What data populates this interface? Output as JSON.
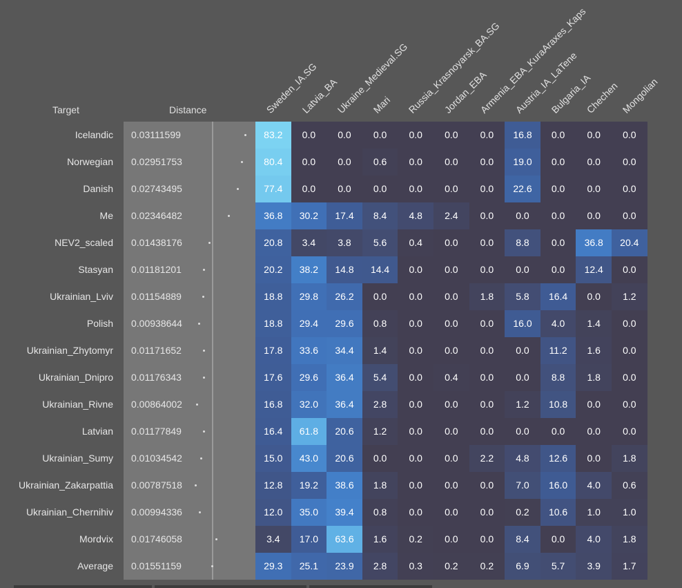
{
  "chart_data": {
    "type": "heatmap",
    "headers": {
      "target": "Target",
      "distance": "Distance"
    },
    "columns": [
      "Sweden_IA.SG",
      "Latvia_BA",
      "Ukraine_Medieval.SG",
      "Mari",
      "Russia_Krasnoyarsk_BA.SG",
      "Jordan_EBA",
      "Armenia_EBA_KuraAraxes_Kaps",
      "Austria_IA_LaTene",
      "Bulgaria_IA",
      "Chechen",
      "Mongolian"
    ],
    "rows": [
      {
        "target": "Icelandic",
        "distance": "0.03111599",
        "values": [
          "83.2",
          "0.0",
          "0.0",
          "0.0",
          "0.0",
          "0.0",
          "0.0",
          "16.8",
          "0.0",
          "0.0",
          "0.0"
        ]
      },
      {
        "target": "Norwegian",
        "distance": "0.02951753",
        "values": [
          "80.4",
          "0.0",
          "0.0",
          "0.6",
          "0.0",
          "0.0",
          "0.0",
          "19.0",
          "0.0",
          "0.0",
          "0.0"
        ]
      },
      {
        "target": "Danish",
        "distance": "0.02743495",
        "values": [
          "77.4",
          "0.0",
          "0.0",
          "0.0",
          "0.0",
          "0.0",
          "0.0",
          "22.6",
          "0.0",
          "0.0",
          "0.0"
        ]
      },
      {
        "target": "Me",
        "distance": "0.02346482",
        "values": [
          "36.8",
          "30.2",
          "17.4",
          "8.4",
          "4.8",
          "2.4",
          "0.0",
          "0.0",
          "0.0",
          "0.0",
          "0.0"
        ]
      },
      {
        "target": "NEV2_scaled",
        "distance": "0.01438176",
        "values": [
          "20.8",
          "3.4",
          "3.8",
          "5.6",
          "0.4",
          "0.0",
          "0.0",
          "8.8",
          "0.0",
          "36.8",
          "20.4"
        ]
      },
      {
        "target": "Stasyan",
        "distance": "0.01181201",
        "values": [
          "20.2",
          "38.2",
          "14.8",
          "14.4",
          "0.0",
          "0.0",
          "0.0",
          "0.0",
          "0.0",
          "12.4",
          "0.0"
        ]
      },
      {
        "target": "Ukrainian_Lviv",
        "distance": "0.01154889",
        "values": [
          "18.8",
          "29.8",
          "26.2",
          "0.0",
          "0.0",
          "0.0",
          "1.8",
          "5.8",
          "16.4",
          "0.0",
          "1.2"
        ]
      },
      {
        "target": "Polish",
        "distance": "0.00938644",
        "values": [
          "18.8",
          "29.4",
          "29.6",
          "0.8",
          "0.0",
          "0.0",
          "0.0",
          "16.0",
          "4.0",
          "1.4",
          "0.0"
        ]
      },
      {
        "target": "Ukrainian_Zhytomyr",
        "distance": "0.01171652",
        "values": [
          "17.8",
          "33.6",
          "34.4",
          "1.4",
          "0.0",
          "0.0",
          "0.0",
          "0.0",
          "11.2",
          "1.6",
          "0.0"
        ]
      },
      {
        "target": "Ukrainian_Dnipro",
        "distance": "0.01176343",
        "values": [
          "17.6",
          "29.6",
          "36.4",
          "5.4",
          "0.0",
          "0.4",
          "0.0",
          "0.0",
          "8.8",
          "1.8",
          "0.0"
        ]
      },
      {
        "target": "Ukrainian_Rivne",
        "distance": "0.00864002",
        "values": [
          "16.8",
          "32.0",
          "36.4",
          "2.8",
          "0.0",
          "0.0",
          "0.0",
          "1.2",
          "10.8",
          "0.0",
          "0.0"
        ]
      },
      {
        "target": "Latvian",
        "distance": "0.01177849",
        "values": [
          "16.4",
          "61.8",
          "20.6",
          "1.2",
          "0.0",
          "0.0",
          "0.0",
          "0.0",
          "0.0",
          "0.0",
          "0.0"
        ]
      },
      {
        "target": "Ukrainian_Sumy",
        "distance": "0.01034542",
        "values": [
          "15.0",
          "43.0",
          "20.6",
          "0.0",
          "0.0",
          "0.0",
          "2.2",
          "4.8",
          "12.6",
          "0.0",
          "1.8"
        ]
      },
      {
        "target": "Ukrainian_Zakarpattia",
        "distance": "0.00787518",
        "values": [
          "12.8",
          "19.2",
          "38.6",
          "1.8",
          "0.0",
          "0.0",
          "0.0",
          "7.0",
          "16.0",
          "4.0",
          "0.6"
        ]
      },
      {
        "target": "Ukrainian_Chernihiv",
        "distance": "0.00994336",
        "values": [
          "12.0",
          "35.0",
          "39.4",
          "0.8",
          "0.0",
          "0.0",
          "0.0",
          "0.2",
          "10.6",
          "1.0",
          "1.0"
        ]
      },
      {
        "target": "Mordvix",
        "distance": "0.01746058",
        "values": [
          "3.4",
          "17.0",
          "63.6",
          "1.6",
          "0.2",
          "0.0",
          "0.0",
          "8.4",
          "0.0",
          "4.0",
          "1.8"
        ]
      },
      {
        "target": "Average",
        "distance": "0.01551159",
        "values": [
          "29.3",
          "25.1",
          "23.9",
          "2.8",
          "0.3",
          "0.2",
          "0.2",
          "6.9",
          "5.7",
          "3.9",
          "1.7"
        ]
      }
    ],
    "colors": {
      "low": "#433f52",
      "mid": "#4070b6",
      "high": "#7dd4f2"
    }
  }
}
